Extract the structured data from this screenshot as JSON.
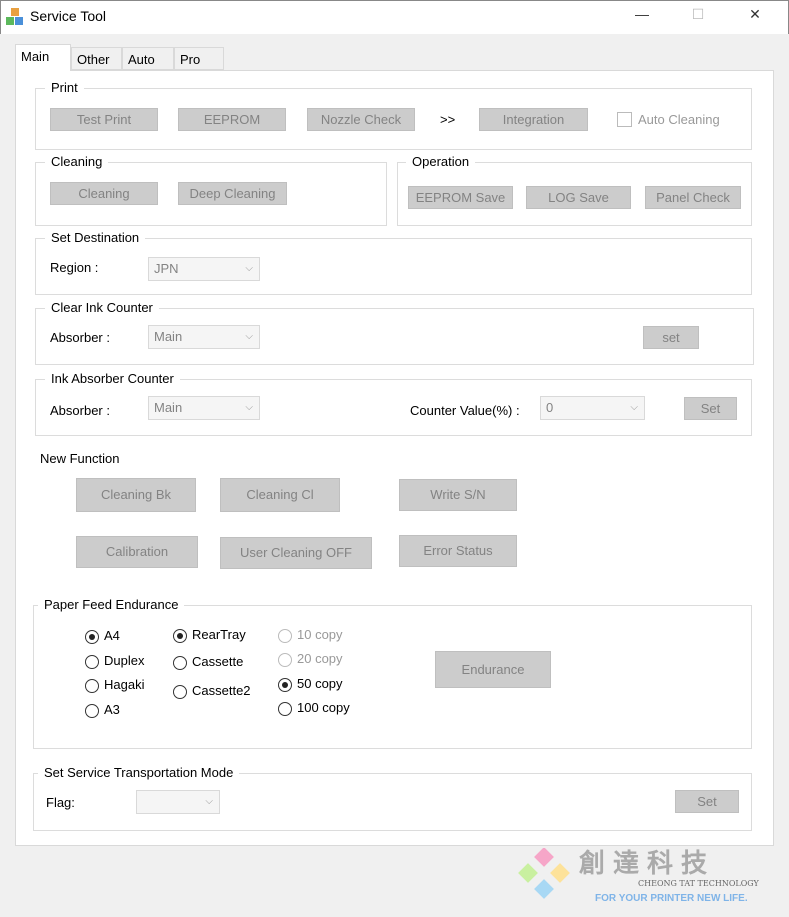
{
  "window": {
    "title": "Service Tool",
    "minimize": "—",
    "maximize": "☐",
    "close": "✕"
  },
  "tabs": [
    "Main",
    "Other",
    "Auto",
    "Pro"
  ],
  "print": {
    "label": "Print",
    "test_print": "Test Print",
    "eeprom": "EEPROM",
    "nozzle_check": "Nozzle Check",
    "arrow": ">>",
    "integration": "Integration",
    "auto_cleaning": "Auto Cleaning"
  },
  "cleaning": {
    "label": "Cleaning",
    "cleaning": "Cleaning",
    "deep_cleaning": "Deep Cleaning"
  },
  "operation": {
    "label": "Operation",
    "eeprom_save": "EEPROM Save",
    "log_save": "LOG Save",
    "panel_check": "Panel Check"
  },
  "destination": {
    "label": "Set Destination",
    "region_label": "Region :",
    "region_value": "JPN"
  },
  "clear_ink": {
    "label": "Clear Ink Counter",
    "absorber_label": "Absorber :",
    "absorber_value": "Main",
    "set": "set"
  },
  "ink_absorber": {
    "label": "Ink Absorber Counter",
    "absorber_label": "Absorber :",
    "absorber_value": "Main",
    "counter_label": "Counter Value(%) :",
    "counter_value": "0",
    "set": "Set"
  },
  "new_function": {
    "label": "New Function",
    "cleaning_bk": "Cleaning Bk",
    "cleaning_cl": "Cleaning Cl",
    "write_sn": "Write S/N",
    "calibration": "Calibration",
    "user_cleaning_off": "User Cleaning OFF",
    "error_status": "Error Status"
  },
  "paper_feed": {
    "label": "Paper Feed Endurance",
    "sizes": [
      {
        "label": "A4",
        "checked": true
      },
      {
        "label": "Duplex",
        "checked": false
      },
      {
        "label": "Hagaki",
        "checked": false
      },
      {
        "label": "A3",
        "checked": false
      }
    ],
    "trays": [
      {
        "label": "RearTray",
        "checked": true
      },
      {
        "label": "Cassette",
        "checked": false
      },
      {
        "label": "Cassette2",
        "checked": false
      }
    ],
    "copies": [
      {
        "label": "10 copy",
        "checked": false,
        "disabled": true
      },
      {
        "label": "20 copy",
        "checked": false,
        "disabled": true
      },
      {
        "label": "50 copy",
        "checked": true,
        "disabled": false
      },
      {
        "label": "100 copy",
        "checked": false,
        "disabled": false
      }
    ],
    "endurance": "Endurance"
  },
  "transport": {
    "label": "Set Service Transportation Mode",
    "flag_label": "Flag:",
    "flag_value": "",
    "set": "Set"
  },
  "watermark": {
    "text": "創達科技",
    "sub": "CHEONG TAT TECHNOLOGY",
    "slogan": "FOR YOUR PRINTER NEW LIFE."
  }
}
